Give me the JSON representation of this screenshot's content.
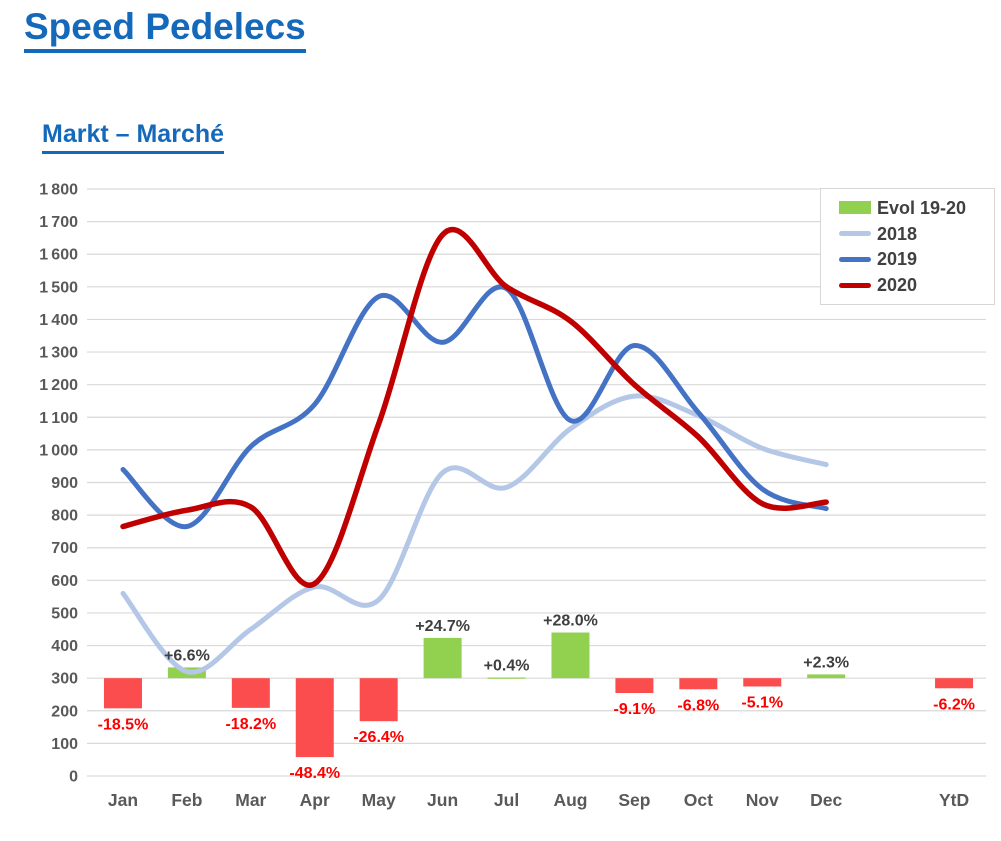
{
  "page": {
    "title": "Speed Pedelecs",
    "subtitle": "Markt – Marché"
  },
  "colors": {
    "title_blue": "#1569BA",
    "axis_text": "#595959",
    "gridline": "#D9D9D9",
    "positive_label": "#3F3F3F",
    "negative_label": "#FF0000"
  },
  "chart_data": {
    "type": "combo: 3 smooth line series + evolution bar series on shared value axis",
    "categories": [
      "Jan",
      "Feb",
      "Mar",
      "Apr",
      "May",
      "Jun",
      "Jul",
      "Aug",
      "Sep",
      "Oct",
      "Nov",
      "Dec",
      "",
      "YtD"
    ],
    "series": [
      {
        "name": "Evol 19-20",
        "type": "bar",
        "unit": "%",
        "color_positive": "#92D050",
        "color_negative": "#FB4D4D",
        "values": [
          -18.5,
          6.6,
          -18.2,
          -48.4,
          -26.4,
          24.7,
          0.4,
          28.0,
          -9.1,
          -6.8,
          -5.1,
          2.3,
          null,
          -6.2
        ],
        "labels": [
          "-18.5%",
          "+6.6%",
          "-18.2%",
          "-48.4%",
          "-26.4%",
          "+24.7%",
          "+0.4%",
          "+28.0%",
          "-9.1%",
          "-6.8%",
          "-5.1%",
          "+2.3%",
          "",
          "-6.2%"
        ]
      },
      {
        "name": "2018",
        "type": "line",
        "color": "#B4C7E7",
        "values": [
          560,
          320,
          450,
          580,
          540,
          930,
          885,
          1065,
          1165,
          1105,
          1005,
          955
        ]
      },
      {
        "name": "2019",
        "type": "line",
        "color": "#4472C4",
        "values": [
          940,
          765,
          1010,
          1140,
          1470,
          1330,
          1495,
          1090,
          1320,
          1115,
          880,
          820
        ]
      },
      {
        "name": "2020",
        "type": "line",
        "color": "#C00000",
        "values": [
          765,
          815,
          825,
          590,
          1080,
          1660,
          1500,
          1395,
          1200,
          1040,
          835,
          840
        ]
      }
    ],
    "yaxis": {
      "min": 0,
      "max": 1800,
      "step": 100,
      "tick_format": "space thousands separator"
    },
    "bar_baseline_value": 300,
    "bar_value_units_per_percent": 5,
    "grid": "horizontal only",
    "legend_position": "top-right inside plot"
  }
}
